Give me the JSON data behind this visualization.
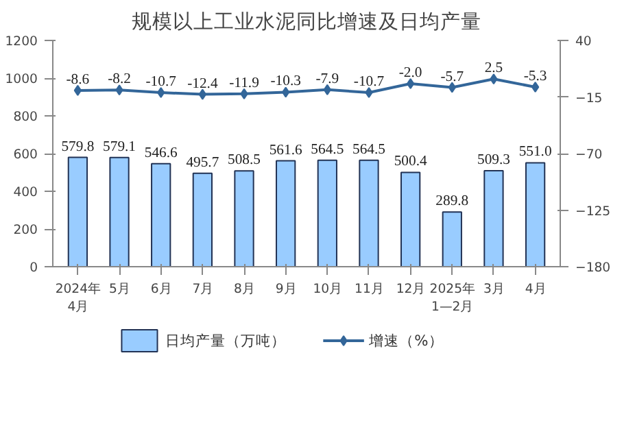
{
  "chart_data": {
    "type": "bar",
    "title": "规模以上工业水泥同比增速及日均产量",
    "categories": [
      "2024年\n4月",
      "5月",
      "6月",
      "7月",
      "8月",
      "9月",
      "10月",
      "11月",
      "12月",
      "2025年\n1—2月",
      "3月",
      "4月"
    ],
    "series": [
      {
        "name": "日均产量（万吨）",
        "color": "#99ccff",
        "values": [
          579.8,
          579.1,
          546.6,
          495.7,
          508.5,
          561.6,
          564.5,
          564.5,
          500.4,
          289.8,
          509.3,
          551.0
        ],
        "value_labels": [
          "579.8",
          "579.1",
          "546.6",
          "495.7",
          "508.5",
          "561.6",
          "564.5",
          "564.5",
          "500.4",
          "289.8",
          "509.3",
          "551.0"
        ]
      },
      {
        "name": "增速（%）",
        "type": "line",
        "axis": "y2",
        "color": "#336699",
        "marker": "diamond",
        "values": [
          -8.6,
          -8.2,
          -10.7,
          -12.4,
          -11.9,
          -10.3,
          -7.9,
          -10.7,
          -2.0,
          -5.7,
          2.5,
          -5.3
        ],
        "value_labels": [
          "-8.6",
          "-8.2",
          "-10.7",
          "-12.4",
          "-11.9",
          "-10.3",
          "-7.9",
          "-10.7",
          "-2.0",
          "-5.7",
          "2.5",
          "-5.3"
        ]
      }
    ],
    "ylim": [
      0,
      1200
    ],
    "yticks": [
      0,
      200,
      400,
      600,
      800,
      1000,
      1200
    ],
    "y2lim": [
      -180,
      40
    ],
    "y2ticks": [
      -180,
      -125,
      -70,
      -15,
      40
    ],
    "grid": false,
    "legend": "bottom"
  }
}
